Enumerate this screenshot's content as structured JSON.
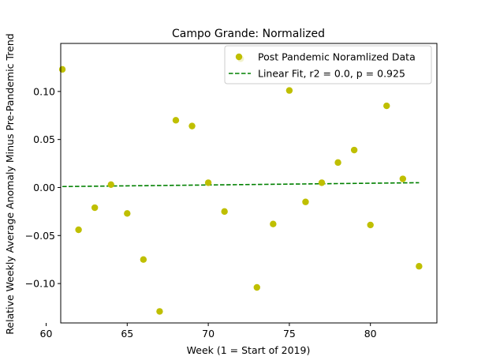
{
  "chart_data": {
    "type": "scatter",
    "title": "Campo Grande: Normalized",
    "xlabel": "Week (1 = Start of 2019)",
    "ylabel": "Relative Weekly Average Anomaly Minus Pre-Pandemic Trend",
    "xlim": [
      60.9,
      84.1
    ],
    "ylim": [
      -0.141,
      0.15
    ],
    "x_ticks": [
      {
        "value": 60,
        "label": "60"
      },
      {
        "value": 65,
        "label": "65"
      },
      {
        "value": 70,
        "label": "70"
      },
      {
        "value": 75,
        "label": "75"
      },
      {
        "value": 80,
        "label": "80"
      }
    ],
    "y_ticks": [
      {
        "value": -0.1,
        "label": "−0.10"
      },
      {
        "value": -0.05,
        "label": "−0.05"
      },
      {
        "value": 0.0,
        "label": "0.00"
      },
      {
        "value": 0.05,
        "label": "0.05"
      },
      {
        "value": 0.1,
        "label": "0.10"
      }
    ],
    "grid": false,
    "legend_position": "top-right",
    "series": [
      {
        "name": "Post Pandemic Noramlized Data",
        "kind": "scatter",
        "color": "#bfbf00",
        "x": [
          61,
          62,
          63,
          64,
          65,
          66,
          67,
          68,
          69,
          70,
          71,
          72,
          73,
          74,
          75,
          76,
          77,
          78,
          79,
          80,
          81,
          82,
          83
        ],
        "y": [
          0.123,
          -0.044,
          -0.021,
          0.003,
          -0.027,
          -0.075,
          -0.129,
          0.07,
          0.064,
          0.005,
          -0.025,
          0.134,
          -0.104,
          -0.038,
          0.101,
          -0.015,
          0.005,
          0.026,
          0.039,
          -0.039,
          0.085,
          0.009,
          -0.082
        ]
      },
      {
        "name": "Linear Fit, r2 = 0.0, p = 0.925",
        "kind": "line",
        "style": "dashed",
        "color": "#008000",
        "x": [
          61,
          83
        ],
        "y": [
          0.001,
          0.005
        ]
      }
    ]
  }
}
